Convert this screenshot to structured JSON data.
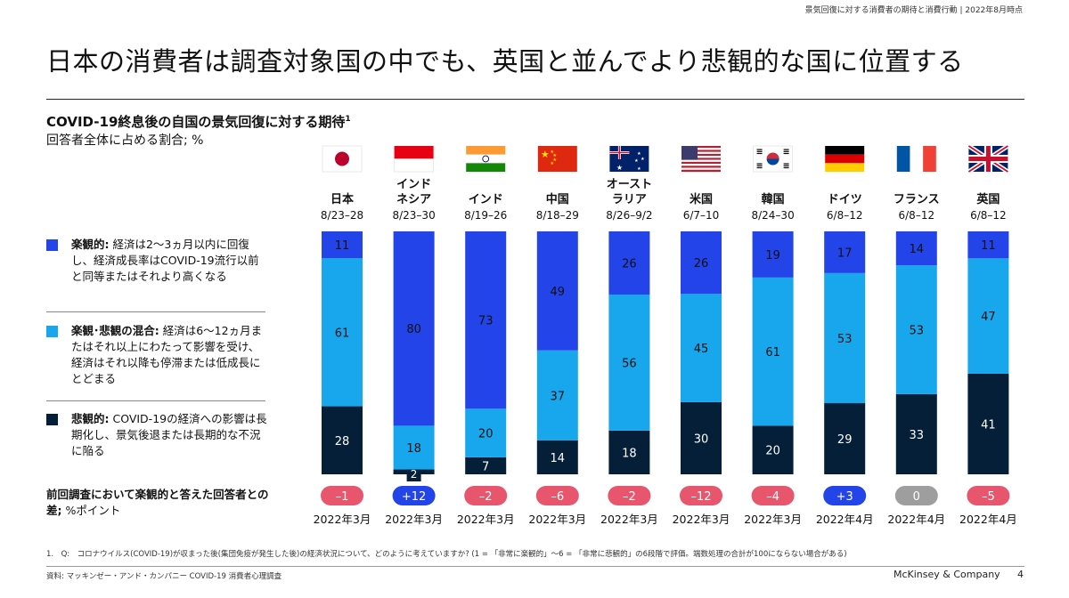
{
  "header_note": "景気回復に対する消費者の期待と消費行動 | 2022年8月時点",
  "title": "日本の消費者は調査対象国の中でも、英国と並んでより悲観的な国に位置する",
  "subtitle": "COVID-19終息後の自国の景気回復に対する期待",
  "subtitle_sup": "1",
  "unit": "回答者全体に占める割合; %",
  "legend": [
    {
      "bold": "楽観的:",
      "text": " 経済は2～3ヵ月以内に回復し、経済成長率はCOVID-19流行以前と同等またはそれより高くなる",
      "color": "#2244e8"
    },
    {
      "bold": "楽観･悲観の混合:",
      "text": " 経済は6～12ヵ月またはそれ以上にわたって影響を受け、経済はそれ以降も停滞または低成長にとどまる",
      "color": "#18a7ec"
    },
    {
      "bold": "悲観的:",
      "text": " COVID-19の経済への影響は長期化し、景気後退または長期的な不況に陥る",
      "color": "#061f38"
    }
  ],
  "diff_label_bold": "前回調査において楽観的と答えた回答者との差;",
  "diff_label_rest": " %ポイント",
  "colors": {
    "optimistic": "#2244e8",
    "mixed": "#18a7ec",
    "pessimistic": "#061f38",
    "neg": "#e8566e",
    "pos": "#2244e8",
    "zero": "#9e9e9e"
  },
  "chart_data": {
    "type": "bar",
    "stacked": true,
    "normalized": true,
    "categories": [
      "日本",
      "インドネシア",
      "インド",
      "中国",
      "オーストラリア",
      "米国",
      "韓国",
      "ドイツ",
      "フランス",
      "英国"
    ],
    "category_labels": [
      [
        "日本"
      ],
      [
        "インド",
        "ネシア"
      ],
      [
        "インド"
      ],
      [
        "中国"
      ],
      [
        "オースト",
        "ラリア"
      ],
      [
        "米国"
      ],
      [
        "韓国"
      ],
      [
        "ドイツ"
      ],
      [
        "フランス"
      ],
      [
        "英国"
      ]
    ],
    "dates": [
      "8/23–28",
      "8/23–30",
      "8/19–26",
      "8/18–29",
      "8/26–9/2",
      "6/7–10",
      "8/24–30",
      "6/8–12",
      "6/8–12",
      "6/8–12"
    ],
    "flags": [
      "jp",
      "id",
      "in",
      "cn",
      "au",
      "us",
      "kr",
      "de",
      "fr",
      "gb"
    ],
    "series": [
      {
        "key": "pessimistic",
        "values": [
          28,
          2,
          7,
          14,
          18,
          30,
          20,
          29,
          33,
          41
        ]
      },
      {
        "key": "mixed",
        "values": [
          61,
          18,
          20,
          37,
          56,
          45,
          61,
          53,
          53,
          47
        ]
      },
      {
        "key": "optimistic",
        "values": [
          11,
          80,
          73,
          49,
          26,
          26,
          19,
          17,
          14,
          11
        ]
      }
    ],
    "difference_vs_previous": [
      "–1",
      "+12",
      "–2",
      "–6",
      "–2",
      "–12",
      "–4",
      "+3",
      "0",
      "–5"
    ],
    "difference_sign": [
      "neg",
      "pos",
      "neg",
      "neg",
      "neg",
      "neg",
      "neg",
      "pos",
      "zero",
      "neg"
    ],
    "previous_survey": [
      "2022年3月",
      "2022年3月",
      "2022年3月",
      "2022年3月",
      "2022年3月",
      "2022年3月",
      "2022年3月",
      "2022年4月",
      "2022年4月",
      "2022年4月"
    ]
  },
  "footnote": "1.　Q:　コロナウイルス(COVID-19)が収まった後(集団免疫が発生した後)の経済状況について、どのように考えていますか? (1 = 「非常に楽観的」～6 = 「非常に悲観的」の6段階で評価。端数処理の合計が100にならない場合がある)",
  "source": "資料: マッキンゼー・アンド・カンパニー COVID-19 消費者心理調査",
  "brand": "McKinsey & Company",
  "page_number": "4"
}
